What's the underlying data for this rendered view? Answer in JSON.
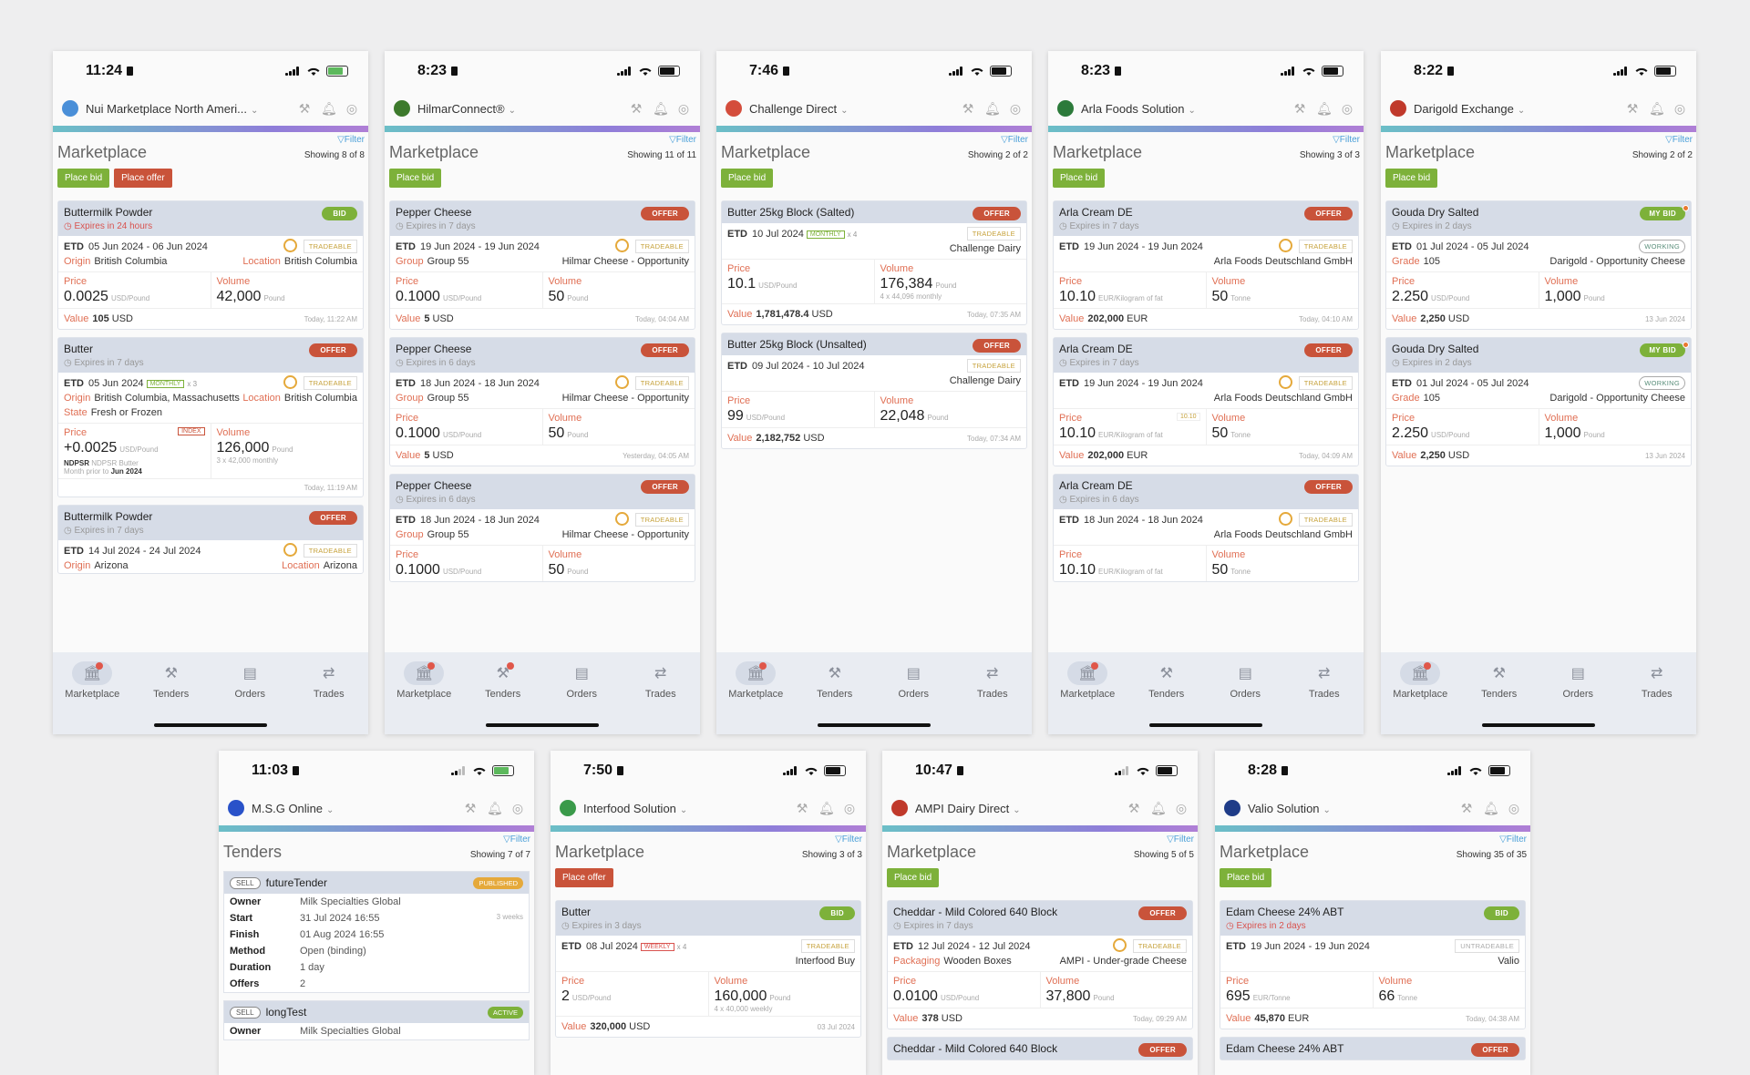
{
  "tabs": [
    "Marketplace",
    "Tenders",
    "Orders",
    "Trades"
  ],
  "filter_label": "Filter",
  "phones": [
    {
      "time": "11:24",
      "app": "Nui Marketplace North Ameri...",
      "logo_color": "#4a8fd8",
      "title": "Marketplace",
      "showing": "Showing 8 of 8",
      "buttons": [
        "Place bid",
        "Place offer"
      ],
      "cards": [
        {
          "product": "Buttermilk Powder",
          "expires": "Expires in 24 hours",
          "side": "BID",
          "etd": "05 Jun 2024 - 06 Jun 2024",
          "trade": "TRADEABLE",
          "m1l": "Origin",
          "m1": "British Columbia",
          "m2l": "Location",
          "m2": "British Columbia",
          "price": "0.0025",
          "pu": "USD/Pound",
          "vol": "42,000",
          "vu": "Pound",
          "value": "105",
          "cur": "USD",
          "ts": "Today, 11:22 AM"
        },
        {
          "product": "Butter",
          "expires": "Expires in 7 days",
          "side": "OFFER",
          "etd": "05 Jun 2024",
          "trade": "TRADEABLE",
          "monthly": "MONTHLY",
          "x": "x 3",
          "m1l": "Origin",
          "m1": "British Columbia, Massachusetts",
          "m2l": "Location",
          "m2": "British Columbia",
          "m3l": "State",
          "m3": "Fresh or Frozen",
          "price": "+0.0025",
          "pu": "USD/Pound",
          "index": "INDEX",
          "vol": "126,000",
          "vu": "Pound",
          "vsub": "3 x 42,000 monthly",
          "ndpsr": "NDPSR",
          "ndpsrsub": "NDPSR Butter",
          "mp": "Month prior to",
          "mpd": "Jun 2024",
          "ts": "Today, 11:19 AM"
        },
        {
          "product": "Buttermilk Powder",
          "expires": "Expires in 7 days",
          "side": "OFFER",
          "etd": "14 Jul 2024 - 24 Jul 2024",
          "trade": "TRADEABLE",
          "m1l": "Origin",
          "m1": "Arizona",
          "m2l": "Location",
          "m2": "Arizona"
        }
      ]
    },
    {
      "time": "8:23",
      "app": "HilmarConnect®",
      "logo_color": "#3d7a2c",
      "title": "Marketplace",
      "showing": "Showing 11 of 11",
      "buttons": [
        "Place bid"
      ],
      "cards": [
        {
          "product": "Pepper Cheese",
          "expires": "Expires in 7 days",
          "side": "OFFER",
          "etd": "19 Jun 2024 - 19 Jun 2024",
          "trade": "TRADEABLE",
          "m1l": "Group",
          "m1": "Group 55",
          "m2": "Hilmar Cheese - Opportunity",
          "price": "0.1000",
          "pu": "USD/Pound",
          "vol": "50",
          "vu": "Pound",
          "value": "5",
          "cur": "USD",
          "ts": "Today, 04:04 AM"
        },
        {
          "product": "Pepper Cheese",
          "expires": "Expires in 6 days",
          "side": "OFFER",
          "etd": "18 Jun 2024 - 18 Jun 2024",
          "trade": "TRADEABLE",
          "m1l": "Group",
          "m1": "Group 55",
          "m2": "Hilmar Cheese - Opportunity",
          "price": "0.1000",
          "pu": "USD/Pound",
          "vol": "50",
          "vu": "Pound",
          "value": "5",
          "cur": "USD",
          "ts": "Yesterday, 04:05 AM"
        },
        {
          "product": "Pepper Cheese",
          "expires": "Expires in 6 days",
          "side": "OFFER",
          "etd": "18 Jun 2024 - 18 Jun 2024",
          "trade": "TRADEABLE",
          "m1l": "Group",
          "m1": "Group 55",
          "m2": "Hilmar Cheese - Opportunity",
          "price": "0.1000",
          "pu": "USD/Pound",
          "vol": "50",
          "vu": "Pound"
        }
      ]
    },
    {
      "time": "7:46",
      "app": "Challenge Direct",
      "logo_color": "#d44d3c",
      "title": "Marketplace",
      "showing": "Showing 2 of 2",
      "buttons": [
        "Place bid"
      ],
      "cards": [
        {
          "product": "Butter 25kg Block (Salted)",
          "side": "OFFER",
          "etd": "10 Jul 2024",
          "monthly": "MONTHLY",
          "x": "x 4",
          "trade": "TRADEABLE",
          "m2": "Challenge Dairy",
          "price": "10.1",
          "pu": "USD/Pound",
          "vol": "176,384",
          "vu": "Pound",
          "vsub": "4 x 44,096 monthly",
          "value": "1,781,478.4",
          "cur": "USD",
          "ts": "Today, 07:35 AM"
        },
        {
          "product": "Butter 25kg Block (Unsalted)",
          "side": "OFFER",
          "etd": "09 Jul 2024 - 10 Jul 2024",
          "trade": "TRADEABLE",
          "m2": "Challenge Dairy",
          "price": "99",
          "pu": "USD/Pound",
          "vol": "22,048",
          "vu": "Pound",
          "value": "2,182,752",
          "cur": "USD",
          "ts": "Today, 07:34 AM"
        }
      ]
    },
    {
      "time": "8:23",
      "app": "Arla Foods Solution",
      "logo_color": "#2c7a3a",
      "title": "Marketplace",
      "showing": "Showing 3 of 3",
      "buttons": [
        "Place bid"
      ],
      "cards": [
        {
          "product": "Arla Cream DE",
          "expires": "Expires in 7 days",
          "side": "OFFER",
          "etd": "19 Jun 2024 - 19 Jun 2024",
          "trade": "TRADEABLE",
          "m2": "Arla Foods Deutschland GmbH",
          "price": "10.10",
          "pu": "EUR/Kilogram of fat",
          "vol": "50",
          "vu": "Tonne",
          "value": "202,000",
          "cur": "EUR",
          "ts": "Today, 04:10 AM"
        },
        {
          "product": "Arla Cream DE",
          "expires": "Expires in 7 days",
          "side": "OFFER",
          "etd": "19 Jun 2024 - 19 Jun 2024",
          "trade": "TRADEABLE",
          "m2": "Arla Foods Deutschland GmbH",
          "price": "10.10",
          "pu": "EUR/Kilogram of fat",
          "pbadge": "10.10",
          "vol": "50",
          "vu": "Tonne",
          "value": "202,000",
          "cur": "EUR",
          "ts": "Today, 04:09 AM"
        },
        {
          "product": "Arla Cream DE",
          "expires": "Expires in 6 days",
          "side": "OFFER",
          "etd": "18 Jun 2024 - 18 Jun 2024",
          "trade": "TRADEABLE",
          "m2": "Arla Foods Deutschland GmbH",
          "price": "10.10",
          "pu": "EUR/Kilogram of fat",
          "vol": "50",
          "vu": "Tonne"
        }
      ]
    },
    {
      "time": "8:22",
      "app": "Darigold Exchange",
      "logo_color": "#c0392b",
      "title": "Marketplace",
      "showing": "Showing 2 of 2",
      "buttons": [
        "Place bid"
      ],
      "cards": [
        {
          "product": "Gouda Dry Salted",
          "expires": "Expires in 2 days",
          "side": "MY BID",
          "etd": "01 Jul 2024 - 05 Jul 2024",
          "trade": "WORKING",
          "m1l": "Grade",
          "m1": "105",
          "m2": "Darigold - Opportunity Cheese",
          "price": "2.250",
          "pu": "USD/Pound",
          "vol": "1,000",
          "vu": "Pound",
          "value": "2,250",
          "cur": "USD",
          "ts": "13 Jun 2024"
        },
        {
          "product": "Gouda Dry Salted",
          "expires": "Expires in 2 days",
          "side": "MY BID",
          "etd": "01 Jul 2024 - 05 Jul 2024",
          "trade": "WORKING",
          "m1l": "Grade",
          "m1": "105",
          "m2": "Darigold - Opportunity Cheese",
          "price": "2.250",
          "pu": "USD/Pound",
          "vol": "1,000",
          "vu": "Pound",
          "value": "2,250",
          "cur": "USD",
          "ts": "13 Jun 2024"
        }
      ]
    },
    {
      "time": "11:03",
      "app": "M.S.G Online",
      "logo_color": "#2952c9",
      "title": "Tenders",
      "showing": "Showing 7 of 7",
      "buttons": [],
      "tenders": [
        {
          "sell": "SELL",
          "name": "futureTender",
          "status": "PUBLISHED",
          "rows": [
            [
              "Owner",
              "Milk Specialties Global",
              ""
            ],
            [
              "Start",
              "31 Jul 2024 16:55",
              "3 weeks"
            ],
            [
              "Finish",
              "01 Aug 2024 16:55",
              ""
            ],
            [
              "Method",
              "Open (binding)",
              ""
            ],
            [
              "Duration",
              "1 day",
              ""
            ],
            [
              "Offers",
              "2",
              ""
            ]
          ]
        },
        {
          "sell": "SELL",
          "name": "longTest",
          "status": "ACTIVE",
          "rows": [
            [
              "Owner",
              "Milk Specialties Global",
              ""
            ]
          ]
        }
      ]
    },
    {
      "time": "7:50",
      "app": "Interfood Solution",
      "logo_color": "#3a9a4a",
      "title": "Marketplace",
      "showing": "Showing 3 of 3",
      "buttons": [
        "Place offer"
      ],
      "cards": [
        {
          "product": "Butter",
          "expires": "Expires in 3 days",
          "side": "BID",
          "etd": "08 Jul 2024",
          "weekly": "WEEKLY",
          "x": "x 4",
          "trade": "TRADEABLE",
          "m2": "Interfood Buy",
          "price": "2",
          "pu": "USD/Pound",
          "vol": "160,000",
          "vu": "Pound",
          "vsub": "4 x 40,000 weekly",
          "value": "320,000",
          "cur": "USD",
          "ts": "03 Jul 2024"
        }
      ]
    },
    {
      "time": "10:47",
      "app": "AMPI Dairy Direct",
      "logo_color": "#c0392b",
      "title": "Marketplace",
      "showing": "Showing 5 of 5",
      "buttons": [
        "Place bid"
      ],
      "cards": [
        {
          "product": "Cheddar - Mild Colored 640 Block",
          "expires": "Expires in 7 days",
          "side": "OFFER",
          "etd": "12 Jul 2024 - 12 Jul 2024",
          "trade": "TRADEABLE",
          "m1l": "Packaging",
          "m1": "Wooden Boxes",
          "m2": "AMPI - Under-grade Cheese",
          "price": "0.0100",
          "pu": "USD/Pound",
          "vol": "37,800",
          "vu": "Pound",
          "value": "378",
          "cur": "USD",
          "ts": "Today, 09:29 AM"
        },
        {
          "product": "Cheddar - Mild Colored 640 Block",
          "side": "OFFER"
        }
      ]
    },
    {
      "time": "8:28",
      "app": "Valio Solution",
      "logo_color": "#1f3c88",
      "title": "Marketplace",
      "showing": "Showing 35 of 35",
      "buttons": [
        "Place bid"
      ],
      "cards": [
        {
          "product": "Edam Cheese 24% ABT",
          "expires": "Expires in 2 days",
          "expred": true,
          "side": "BID",
          "etd": "19 Jun 2024 - 19 Jun 2024",
          "trade": "UNTRADEABLE",
          "m2": "Valio",
          "price": "695",
          "pu": "EUR/Tonne",
          "vol": "66",
          "vu": "Tonne",
          "value": "45,870",
          "cur": "EUR",
          "ts": "Today, 04:38 AM"
        },
        {
          "product": "Edam Cheese 24% ABT",
          "side": "OFFER"
        }
      ]
    }
  ]
}
